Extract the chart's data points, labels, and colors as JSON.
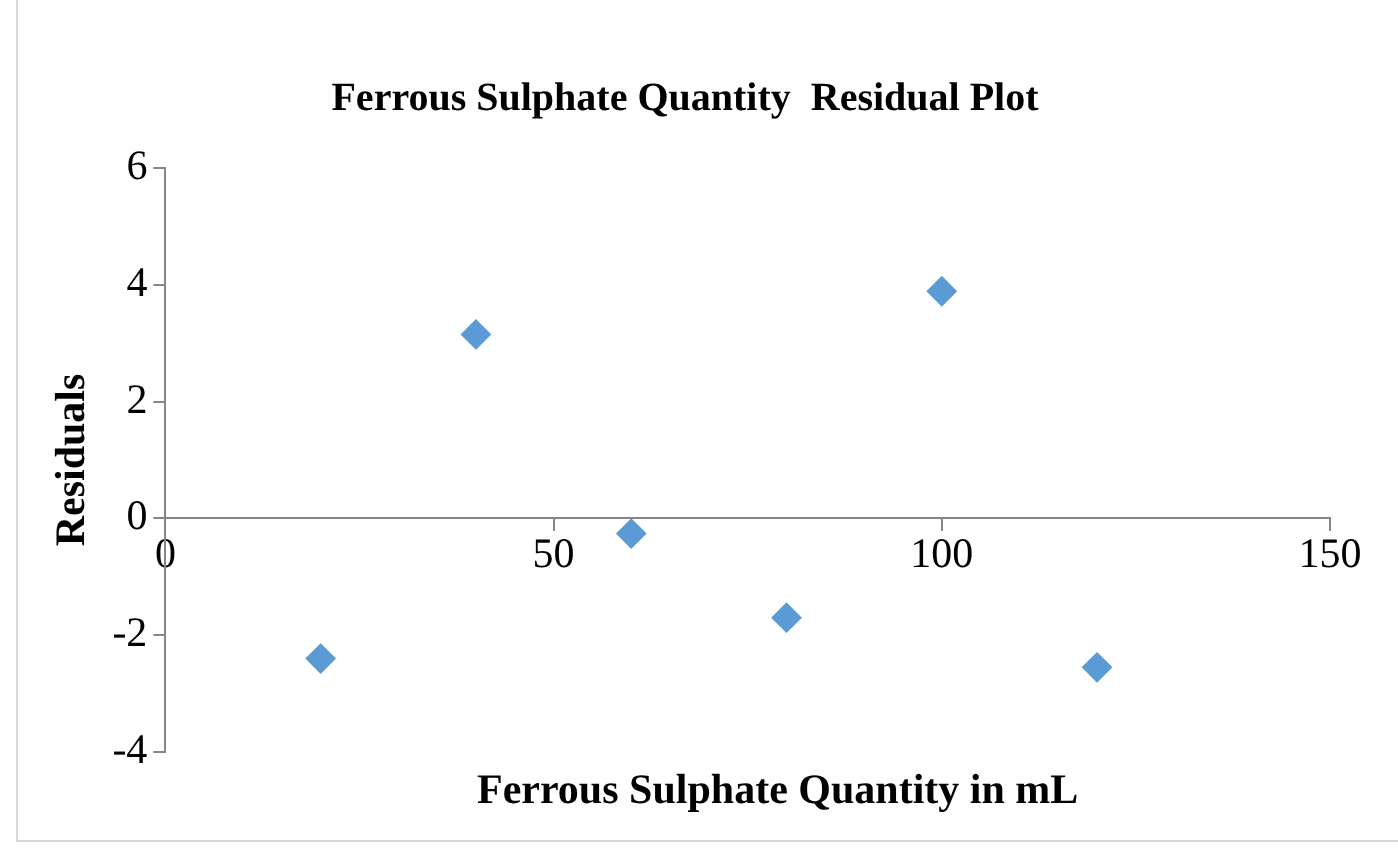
{
  "chart_data": {
    "type": "scatter",
    "title": "Ferrous Sulphate Quantity  Residual Plot",
    "xlabel": "Ferrous Sulphate Quantity in mL",
    "ylabel": "Residuals",
    "x": [
      20,
      40,
      60,
      80,
      100,
      120
    ],
    "series": [
      {
        "color": "#5b9bd5",
        "values": [
          -2.4,
          3.15,
          -0.26,
          -1.7,
          3.89,
          -2.55
        ]
      }
    ],
    "xlim": [
      0,
      150
    ],
    "xticks": [
      0,
      50,
      100,
      150
    ],
    "ylim": [
      -4,
      6
    ],
    "yticks": [
      -4,
      -2,
      0,
      2,
      4,
      6
    ],
    "grid": false,
    "legend": false,
    "marker": "diamond"
  }
}
